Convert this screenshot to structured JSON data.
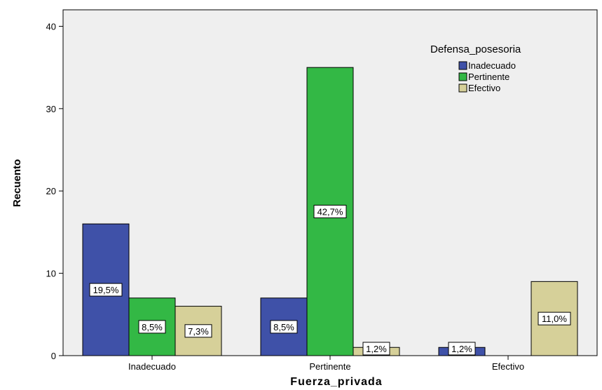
{
  "chart_data": {
    "type": "bar",
    "title": "",
    "xlabel": "Fuerza_privada",
    "ylabel": "Recuento",
    "categories": [
      "Inadecuado",
      "Pertinente",
      "Efectivo"
    ],
    "ylim": [
      0,
      42
    ],
    "yticks": [
      0,
      10,
      20,
      30,
      40
    ],
    "grid": false,
    "legend": {
      "title": "Defensa_posesoria",
      "position": "top-right"
    },
    "series": [
      {
        "name": "Inadecuado",
        "color": "#3f51a8",
        "values": [
          16,
          7,
          1
        ],
        "labels": [
          "19,5%",
          "8,5%",
          "1,2%"
        ]
      },
      {
        "name": "Pertinente",
        "color": "#33b845",
        "values": [
          7,
          35,
          0
        ],
        "labels": [
          "8,5%",
          "42,7%",
          ""
        ]
      },
      {
        "name": "Efectivo",
        "color": "#d6d099",
        "values": [
          6,
          1,
          9
        ],
        "labels": [
          "7,3%",
          "1,2%",
          "11,0%"
        ]
      }
    ]
  },
  "colors": {
    "plot_background": "#efefef",
    "bar_outline": "#000000"
  }
}
